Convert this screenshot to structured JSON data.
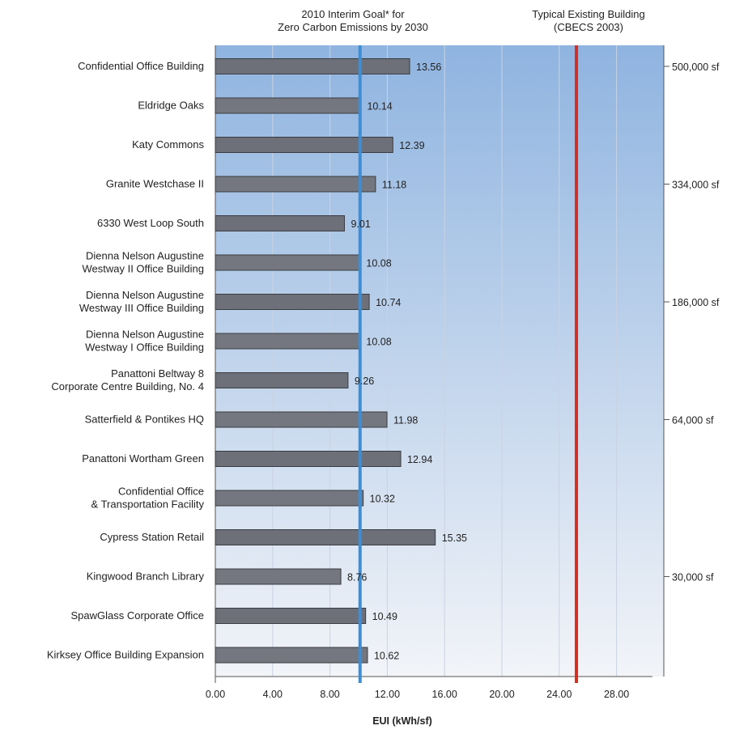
{
  "chart_data": {
    "type": "bar",
    "orientation": "horizontal",
    "xlabel": "EUI (kWh/sf)",
    "xlim": [
      0,
      32
    ],
    "xticks": [
      "0.00",
      "4.00",
      "8.00",
      "12.00",
      "16.00",
      "20.00",
      "24.00",
      "28.00"
    ],
    "categories": [
      [
        "Confidential Office Building"
      ],
      [
        "Eldridge Oaks"
      ],
      [
        "Katy Commons"
      ],
      [
        "Granite Westchase II"
      ],
      [
        "6330 West Loop South"
      ],
      [
        "Dienna Nelson Augustine",
        "Westway II Office Building"
      ],
      [
        "Dienna Nelson Augustine",
        "Westway III Office Building"
      ],
      [
        "Dienna Nelson Augustine",
        "Westway I Office Building"
      ],
      [
        "Panattoni Beltway 8",
        "Corporate Centre Building, No. 4"
      ],
      [
        "Satterfield & Pontikes HQ"
      ],
      [
        "Panattoni Wortham Green"
      ],
      [
        "Confidential Office",
        "& Transportation Facility"
      ],
      [
        "Cypress Station Retail"
      ],
      [
        "Kingwood Branch Library"
      ],
      [
        "SpawGlass Corporate Office"
      ],
      [
        "Kirksey Office Building Expansion"
      ]
    ],
    "values": [
      13.56,
      10.14,
      12.39,
      11.18,
      9.01,
      10.08,
      10.74,
      10.08,
      9.26,
      11.98,
      12.94,
      10.32,
      15.35,
      8.76,
      10.49,
      10.62
    ],
    "value_labels": [
      "13.56",
      "10.14",
      "12.39",
      "11.18",
      "9.01",
      "10.08",
      "10.74",
      "10.08",
      "9.26",
      "11.98",
      "12.94",
      "10.32",
      "15.35",
      "8.76",
      "10.49",
      "10.62"
    ],
    "reference_lines": [
      {
        "value": 10.1,
        "label": [
          "2010 Interim Goal* for",
          "Zero Carbon Emissions by 2030"
        ],
        "color": "#3d8ed6"
      },
      {
        "value": 25.2,
        "label": [
          "Typical Existing Building",
          "(CBECS 2003)"
        ],
        "color": "#e02a1a"
      }
    ],
    "size_markers": [
      {
        "label": "500,000 sf",
        "at_row": 0
      },
      {
        "label": "334,000 sf",
        "at_row": 3
      },
      {
        "label": "186,000 sf",
        "at_row": 6
      },
      {
        "label": "64,000 sf",
        "at_row": 9
      },
      {
        "label": "30,000 sf",
        "at_row": 13
      }
    ],
    "bar_color": "#6d7079",
    "background_gradient": [
      "#8fb4e0",
      "#f2f4f8"
    ],
    "grid": true
  }
}
